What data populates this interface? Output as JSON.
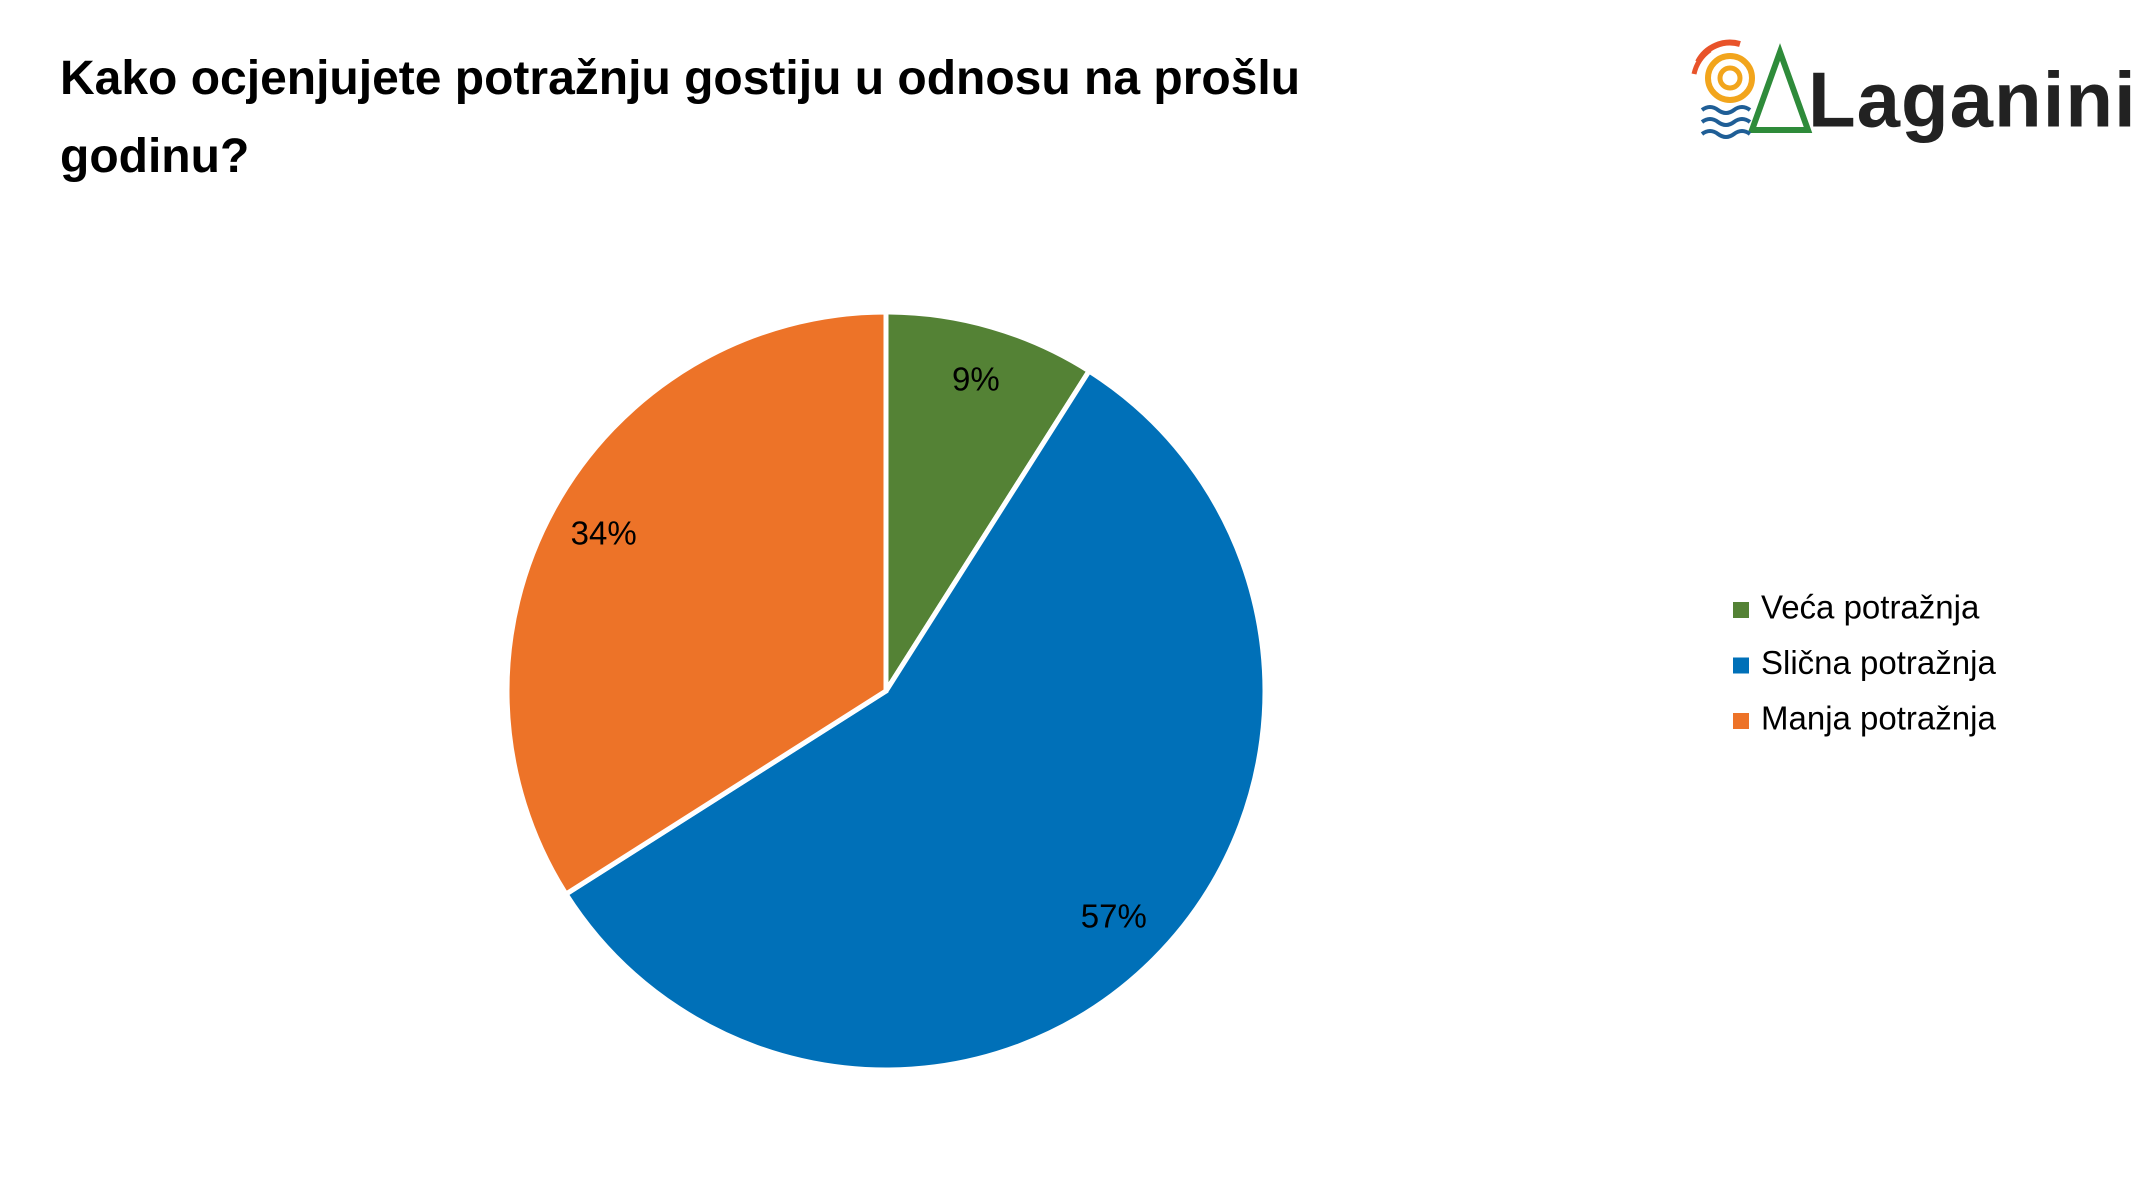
{
  "logo": "Laganini",
  "chart_data": {
    "type": "pie",
    "title": "Kako ocjenjujete potražnju gostiju u odnosu na prošlu godinu?",
    "categories": [
      "Veća potražnja",
      "Slična potražnja",
      "Manja potražnja"
    ],
    "values": [
      9,
      57,
      34
    ],
    "value_labels": [
      "9%",
      "57%",
      "34%"
    ],
    "colors": [
      "#548235",
      "#0070B8",
      "#ED7328"
    ],
    "legend": "right"
  }
}
